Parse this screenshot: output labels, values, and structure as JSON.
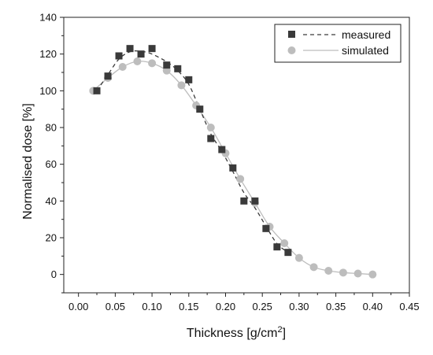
{
  "chart_data": {
    "type": "scatter",
    "xlabel": "Thickness [g/cm",
    "xlabel_sup": "2",
    "xlabel_suffix": "]",
    "ylabel": "Normalised dose [%]",
    "xlim": [
      -0.02,
      0.45
    ],
    "ylim": [
      -10,
      140
    ],
    "x_ticks": [
      0.0,
      0.05,
      0.1,
      0.15,
      0.2,
      0.25,
      0.3,
      0.35,
      0.4,
      0.45
    ],
    "x_tick_labels": [
      "0.00",
      "0.05",
      "0.10",
      "0.15",
      "0.20",
      "0.25",
      "0.30",
      "0.35",
      "0.40",
      "0.45"
    ],
    "y_ticks": [
      0,
      20,
      40,
      60,
      80,
      100,
      120,
      140
    ],
    "y_tick_labels": [
      "0",
      "20",
      "40",
      "60",
      "80",
      "100",
      "120",
      "140"
    ],
    "grid": false,
    "legend_position": "top-right",
    "series": [
      {
        "name": "measured",
        "color": "#3a3a3a",
        "marker": "square",
        "line_style": "dashed",
        "x": [
          0.025,
          0.04,
          0.055,
          0.07,
          0.085,
          0.1,
          0.12,
          0.135,
          0.15,
          0.165,
          0.18,
          0.195,
          0.21,
          0.225,
          0.24,
          0.255,
          0.27,
          0.285
        ],
        "y": [
          100,
          108,
          119,
          123,
          120,
          123,
          114,
          112,
          106,
          90,
          74,
          68,
          58,
          40,
          40,
          25,
          15,
          12
        ]
      },
      {
        "name": "simulated",
        "color": "#bdbdbd",
        "marker": "circle",
        "line_style": "solid",
        "x": [
          0.02,
          0.04,
          0.06,
          0.08,
          0.1,
          0.12,
          0.14,
          0.16,
          0.18,
          0.2,
          0.22,
          0.24,
          0.26,
          0.28,
          0.3,
          0.32,
          0.34,
          0.36,
          0.38,
          0.4
        ],
        "y": [
          100,
          107,
          113,
          116,
          115,
          111,
          103,
          92,
          80,
          66,
          52,
          39,
          26,
          17,
          9,
          4,
          2,
          1,
          0.5,
          0
        ]
      }
    ]
  }
}
